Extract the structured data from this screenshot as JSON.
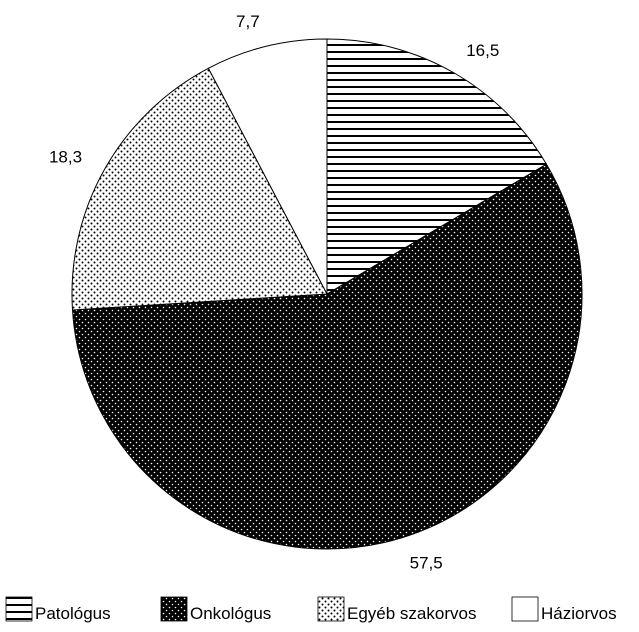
{
  "chart_data": {
    "type": "pie",
    "title": "",
    "slices": [
      {
        "label": "Patológus",
        "value": 16.5,
        "value_label": "16,5",
        "pattern": "horizontal-lines"
      },
      {
        "label": "Onkológus",
        "value": 57.5,
        "value_label": "57,5",
        "pattern": "dense-black-dots"
      },
      {
        "label": "Egyéb szakorvos",
        "value": 18.3,
        "value_label": "18,3",
        "pattern": "sparse-dots"
      },
      {
        "label": "Háziorvos",
        "value": 7.7,
        "value_label": "7,7",
        "pattern": "white"
      }
    ],
    "start_angle": "12 o'clock",
    "direction": "clockwise",
    "legend_position": "bottom",
    "colors": {
      "stroke": "#000000",
      "background": "#ffffff"
    }
  }
}
